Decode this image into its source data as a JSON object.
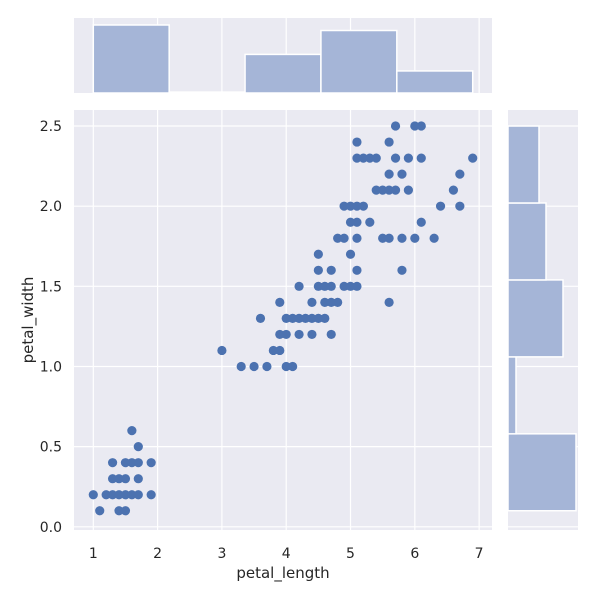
{
  "chart_data": {
    "type": "scatter",
    "title": "",
    "xlabel": "petal_length",
    "ylabel": "petal_width",
    "xlim": [
      0.7,
      7.2
    ],
    "ylim": [
      -0.02,
      2.6
    ],
    "x_ticks": [
      1,
      2,
      3,
      4,
      5,
      6,
      7
    ],
    "y_ticks": [
      0.0,
      0.5,
      1.0,
      1.5,
      2.0,
      2.5
    ],
    "x_tick_labels": [
      "1",
      "2",
      "3",
      "4",
      "5",
      "6",
      "7"
    ],
    "y_tick_labels": [
      "0.0",
      "0.5",
      "1.0",
      "1.5",
      "2.0",
      "2.5"
    ],
    "grid": true,
    "colors": {
      "background": "#eaeaf2",
      "grid": "#ffffff",
      "points": "#4c72b0",
      "histogram": "#a5b5d7"
    },
    "points": [
      [
        1.0,
        0.2
      ],
      [
        1.1,
        0.1
      ],
      [
        1.2,
        0.2
      ],
      [
        1.3,
        0.2
      ],
      [
        1.3,
        0.3
      ],
      [
        1.3,
        0.4
      ],
      [
        1.4,
        0.2
      ],
      [
        1.4,
        0.3
      ],
      [
        1.4,
        0.1
      ],
      [
        1.5,
        0.2
      ],
      [
        1.5,
        0.4
      ],
      [
        1.5,
        0.1
      ],
      [
        1.5,
        0.3
      ],
      [
        1.6,
        0.2
      ],
      [
        1.6,
        0.4
      ],
      [
        1.6,
        0.6
      ],
      [
        1.7,
        0.2
      ],
      [
        1.7,
        0.4
      ],
      [
        1.7,
        0.3
      ],
      [
        1.7,
        0.5
      ],
      [
        1.9,
        0.2
      ],
      [
        1.9,
        0.4
      ],
      [
        3.0,
        1.1
      ],
      [
        3.3,
        1.0
      ],
      [
        3.5,
        1.0
      ],
      [
        3.6,
        1.3
      ],
      [
        3.7,
        1.0
      ],
      [
        3.8,
        1.1
      ],
      [
        3.9,
        1.1
      ],
      [
        3.9,
        1.2
      ],
      [
        3.9,
        1.4
      ],
      [
        4.0,
        1.0
      ],
      [
        4.0,
        1.2
      ],
      [
        4.0,
        1.3
      ],
      [
        4.1,
        1.0
      ],
      [
        4.1,
        1.3
      ],
      [
        4.2,
        1.2
      ],
      [
        4.2,
        1.3
      ],
      [
        4.2,
        1.5
      ],
      [
        4.3,
        1.3
      ],
      [
        4.4,
        1.2
      ],
      [
        4.4,
        1.3
      ],
      [
        4.4,
        1.4
      ],
      [
        4.5,
        1.3
      ],
      [
        4.5,
        1.5
      ],
      [
        4.5,
        1.6
      ],
      [
        4.5,
        1.7
      ],
      [
        4.6,
        1.3
      ],
      [
        4.6,
        1.4
      ],
      [
        4.6,
        1.5
      ],
      [
        4.7,
        1.2
      ],
      [
        4.7,
        1.4
      ],
      [
        4.7,
        1.5
      ],
      [
        4.7,
        1.6
      ],
      [
        4.8,
        1.4
      ],
      [
        4.8,
        1.8
      ],
      [
        4.9,
        1.5
      ],
      [
        4.9,
        1.8
      ],
      [
        4.9,
        2.0
      ],
      [
        5.0,
        1.5
      ],
      [
        5.0,
        1.7
      ],
      [
        5.0,
        1.9
      ],
      [
        5.0,
        2.0
      ],
      [
        5.1,
        1.5
      ],
      [
        5.1,
        1.6
      ],
      [
        5.1,
        1.8
      ],
      [
        5.1,
        1.9
      ],
      [
        5.1,
        2.0
      ],
      [
        5.1,
        2.3
      ],
      [
        5.1,
        2.4
      ],
      [
        5.2,
        2.0
      ],
      [
        5.2,
        2.3
      ],
      [
        5.3,
        1.9
      ],
      [
        5.3,
        2.3
      ],
      [
        5.4,
        2.1
      ],
      [
        5.4,
        2.3
      ],
      [
        5.5,
        1.8
      ],
      [
        5.5,
        2.1
      ],
      [
        5.6,
        1.4
      ],
      [
        5.6,
        1.8
      ],
      [
        5.6,
        2.1
      ],
      [
        5.6,
        2.2
      ],
      [
        5.6,
        2.4
      ],
      [
        5.7,
        2.1
      ],
      [
        5.7,
        2.3
      ],
      [
        5.7,
        2.5
      ],
      [
        5.8,
        1.6
      ],
      [
        5.8,
        1.8
      ],
      [
        5.8,
        2.2
      ],
      [
        5.9,
        2.1
      ],
      [
        5.9,
        2.3
      ],
      [
        6.0,
        1.8
      ],
      [
        6.0,
        2.5
      ],
      [
        6.1,
        1.9
      ],
      [
        6.1,
        2.3
      ],
      [
        6.1,
        2.5
      ],
      [
        6.3,
        1.8
      ],
      [
        6.4,
        2.0
      ],
      [
        6.6,
        2.1
      ],
      [
        6.7,
        2.0
      ],
      [
        6.7,
        2.2
      ],
      [
        6.9,
        2.3
      ]
    ],
    "x_histogram": {
      "bin_edges": [
        1.0,
        2.18,
        3.36,
        4.54,
        5.72,
        6.9
      ],
      "densities": [
        0.37,
        0.005,
        0.21,
        0.34,
        0.12
      ]
    },
    "y_histogram": {
      "bin_edges": [
        0.1,
        0.58,
        1.06,
        1.54,
        2.02,
        2.5
      ],
      "densities": [
        0.68,
        0.08,
        0.55,
        0.38,
        0.31
      ]
    }
  }
}
